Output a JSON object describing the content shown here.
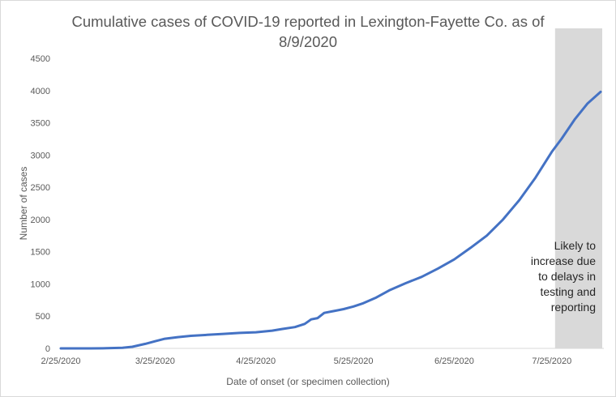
{
  "chart_data": {
    "type": "line",
    "title_line1": "Cumulative cases of COVID-19 reported in Lexington-Fayette Co.  as of",
    "title_line2": "8/9/2020",
    "xlabel": "Date of onset (or specimen collection)",
    "ylabel": "Number of cases",
    "ylim": [
      0,
      4500
    ],
    "y_ticks": [
      "0",
      "500",
      "1000",
      "1500",
      "2000",
      "2500",
      "3000",
      "3500",
      "4000",
      "4500"
    ],
    "x_ticks": [
      "2/25/2020",
      "3/25/2020",
      "4/25/2020",
      "5/25/2020",
      "6/25/2020",
      "7/25/2020"
    ],
    "grid": false,
    "series": [
      {
        "color": "#4472c4",
        "points": [
          [
            "2/25/2020",
            0
          ],
          [
            "3/5/2020",
            0
          ],
          [
            "3/10/2020",
            2
          ],
          [
            "3/15/2020",
            10
          ],
          [
            "3/18/2020",
            25
          ],
          [
            "3/22/2020",
            70
          ],
          [
            "3/25/2020",
            110
          ],
          [
            "3/28/2020",
            150
          ],
          [
            "4/1/2020",
            175
          ],
          [
            "4/5/2020",
            195
          ],
          [
            "4/10/2020",
            210
          ],
          [
            "4/15/2020",
            225
          ],
          [
            "4/20/2020",
            240
          ],
          [
            "4/25/2020",
            250
          ],
          [
            "4/30/2020",
            275
          ],
          [
            "5/3/2020",
            300
          ],
          [
            "5/7/2020",
            330
          ],
          [
            "5/10/2020",
            380
          ],
          [
            "5/12/2020",
            450
          ],
          [
            "5/14/2020",
            470
          ],
          [
            "5/16/2020",
            550
          ],
          [
            "5/19/2020",
            580
          ],
          [
            "5/22/2020",
            610
          ],
          [
            "5/25/2020",
            650
          ],
          [
            "5/28/2020",
            700
          ],
          [
            "6/1/2020",
            790
          ],
          [
            "6/5/2020",
            900
          ],
          [
            "6/10/2020",
            1010
          ],
          [
            "6/15/2020",
            1110
          ],
          [
            "6/20/2020",
            1240
          ],
          [
            "6/25/2020",
            1380
          ],
          [
            "6/30/2020",
            1560
          ],
          [
            "7/5/2020",
            1750
          ],
          [
            "7/10/2020",
            2000
          ],
          [
            "7/15/2020",
            2300
          ],
          [
            "7/20/2020",
            2650
          ],
          [
            "7/25/2020",
            3050
          ],
          [
            "7/28/2020",
            3250
          ],
          [
            "8/1/2020",
            3550
          ],
          [
            "8/5/2020",
            3800
          ],
          [
            "8/9/2020",
            3980
          ]
        ]
      }
    ],
    "shaded_region": {
      "from": "7/26/2020",
      "to": "8/9/2020",
      "color": "#d9d9d9",
      "label_lines": [
        "Likely to",
        "increase due",
        "to delays in",
        "testing and",
        "reporting"
      ]
    }
  }
}
